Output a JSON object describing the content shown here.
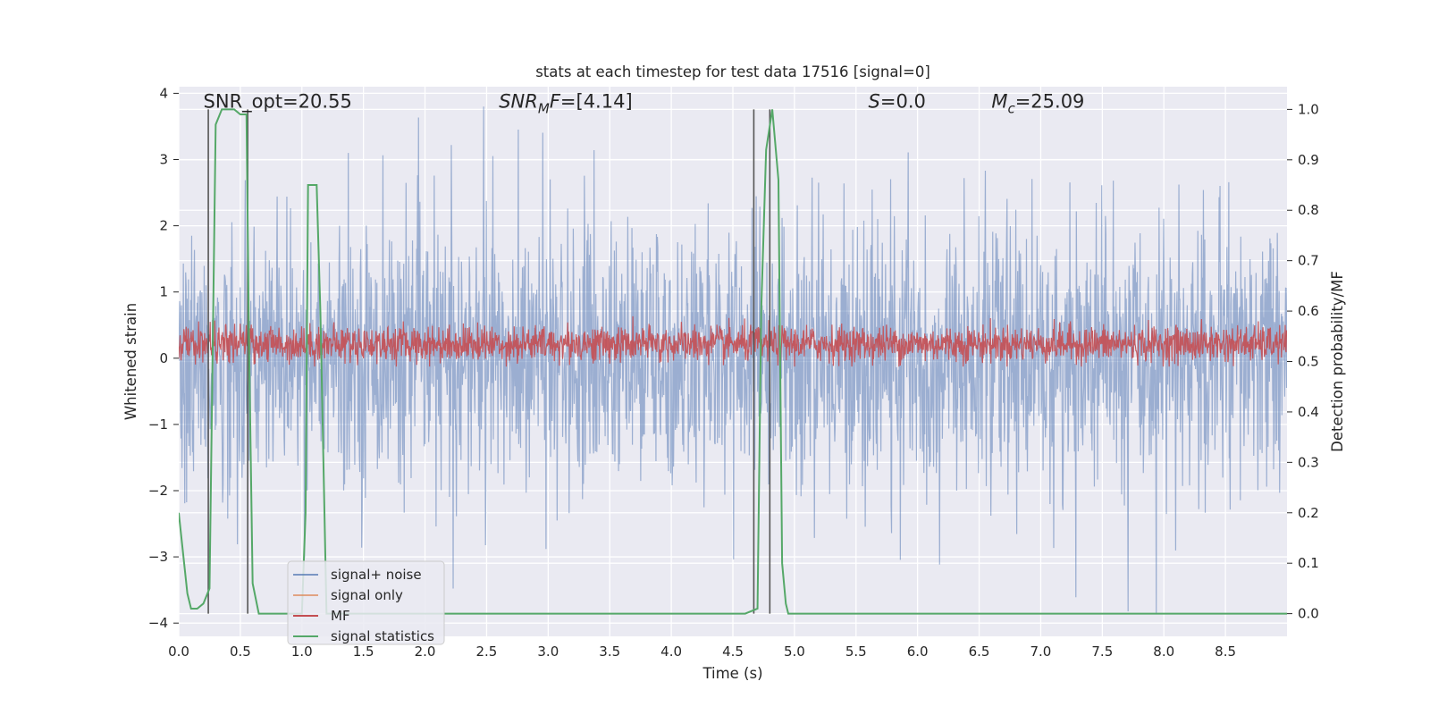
{
  "chart_data": {
    "type": "line",
    "title": "stats at each timestep for test data 17516 [signal=0]",
    "xlabel": "Time (s)",
    "ylabel": "Whitened strain",
    "ylabel_right": "Detection probability/MF",
    "xlim": [
      0.0,
      9.0
    ],
    "ylim": [
      -4.2,
      4.1
    ],
    "ylim_right": [
      -0.045,
      1.045
    ],
    "x_ticks": [
      "0.0",
      "0.5",
      "1.0",
      "1.5",
      "2.0",
      "2.5",
      "3.0",
      "3.5",
      "4.0",
      "4.5",
      "5.0",
      "5.5",
      "6.0",
      "6.5",
      "7.0",
      "7.5",
      "8.0",
      "8.5"
    ],
    "y_ticks": [
      "−4",
      "−3",
      "−2",
      "−1",
      "0",
      "1",
      "2",
      "3",
      "4"
    ],
    "y_ticks_right": [
      "0.0",
      "0.1",
      "0.2",
      "0.3",
      "0.4",
      "0.5",
      "0.6",
      "0.7",
      "0.8",
      "0.9",
      "1.0"
    ],
    "grid": true,
    "legend_position": "lower-left",
    "annotations": [
      "SNR_opt=20.55",
      "SNR_MF=[4.14]",
      "S=0.0",
      "M_c=25.09"
    ],
    "colors": {
      "plot_background": "#eaeaf2",
      "grid": "#ffffff",
      "signal_noise": "#4c72b0",
      "signal_only": "#dd8452",
      "mf": "#c44e52",
      "signal_statistics": "#55a868",
      "vertical_lines": "#555555"
    },
    "series": [
      {
        "name": "signal+ noise",
        "axis": "left",
        "style": "dense noise band, mostly between -1.5 and 1.7, peaks to about ±3.5",
        "amplitude_typical": [
          -1.5,
          1.65
        ],
        "amplitude_extreme": [
          -3.85,
          3.8
        ]
      },
      {
        "name": "signal only",
        "axis": "left",
        "values": []
      },
      {
        "name": "MF",
        "axis": "right",
        "style": "dense band between about 0.49 and 0.6",
        "range": [
          0.49,
          0.6
        ]
      },
      {
        "name": "signal statistics",
        "axis": "right",
        "x": [
          0.0,
          0.07,
          0.1,
          0.15,
          0.2,
          0.25,
          0.3,
          0.35,
          0.4,
          0.45,
          0.5,
          0.55,
          0.57,
          0.6,
          0.65,
          0.7,
          1.0,
          1.03,
          1.05,
          1.08,
          1.1,
          1.12,
          1.15,
          1.2,
          1.25,
          1.3,
          3.0,
          4.5,
          4.6,
          4.7,
          4.73,
          4.77,
          4.82,
          4.87,
          4.9,
          4.93,
          4.95,
          5.0,
          5.5,
          6.0,
          9.0
        ],
        "y": [
          0.2,
          0.04,
          0.01,
          0.01,
          0.02,
          0.05,
          0.97,
          1.0,
          1.0,
          1.0,
          0.99,
          0.99,
          0.55,
          0.06,
          0.0,
          0.0,
          0.0,
          0.2,
          0.85,
          0.85,
          0.85,
          0.85,
          0.6,
          0.0,
          0.0,
          0.0,
          0.0,
          0.0,
          0.0,
          0.01,
          0.6,
          0.92,
          1.0,
          0.86,
          0.1,
          0.02,
          0.0,
          0.0,
          0.0,
          0.0,
          0.0
        ]
      }
    ],
    "vertical_lines_x": [
      0.24,
      0.56,
      4.67,
      4.8
    ]
  }
}
